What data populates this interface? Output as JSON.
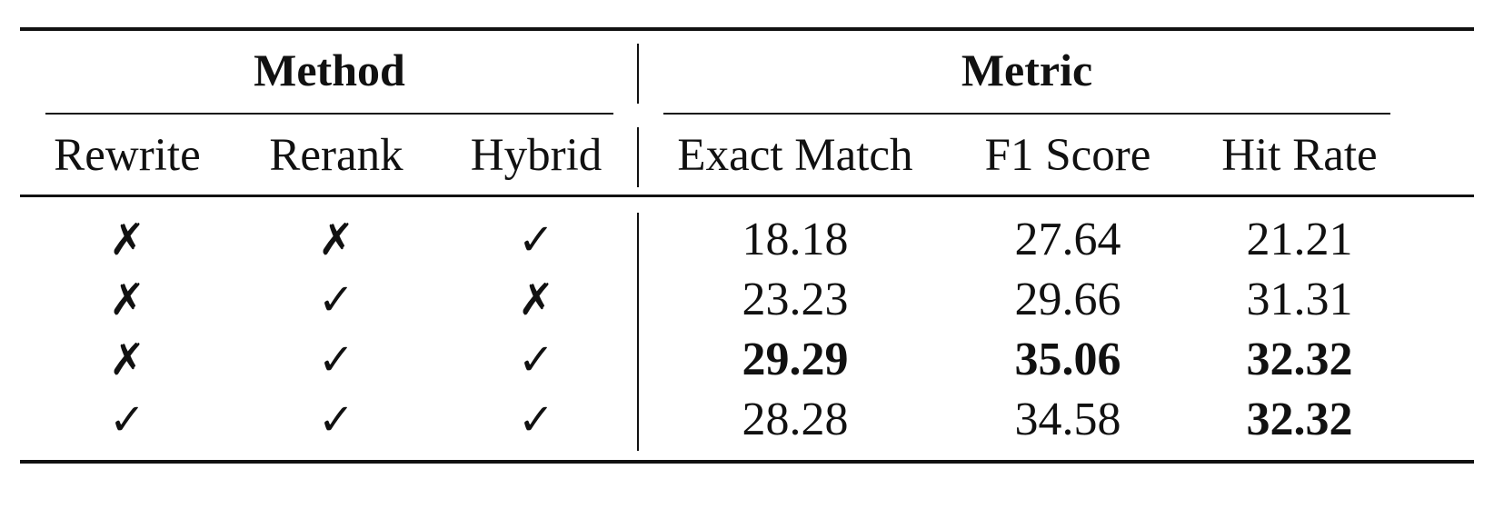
{
  "table": {
    "group_headers": {
      "method": "Method",
      "metric": "Metric"
    },
    "columns": [
      "Rewrite",
      "Rerank",
      "Hybrid",
      "Exact Match",
      "F1 Score",
      "Hit Rate"
    ],
    "rows": [
      {
        "rewrite": "✗",
        "rerank": "✗",
        "hybrid": "✓",
        "exact_match": "18.18",
        "f1_score": "27.64",
        "hit_rate": "21.21"
      },
      {
        "rewrite": "✗",
        "rerank": "✓",
        "hybrid": "✗",
        "exact_match": "23.23",
        "f1_score": "29.66",
        "hit_rate": "31.31"
      },
      {
        "rewrite": "✗",
        "rerank": "✓",
        "hybrid": "✓",
        "exact_match": "29.29",
        "f1_score": "35.06",
        "hit_rate": "32.32"
      },
      {
        "rewrite": "✓",
        "rerank": "✓",
        "hybrid": "✓",
        "exact_match": "28.28",
        "f1_score": "34.58",
        "hit_rate": "32.32"
      }
    ],
    "bold_cells": [
      {
        "row": 2,
        "column": "Exact Match"
      },
      {
        "row": 2,
        "column": "F1 Score"
      },
      {
        "row": 2,
        "column": "Hit Rate"
      },
      {
        "row": 3,
        "column": "Hit Rate"
      }
    ]
  }
}
